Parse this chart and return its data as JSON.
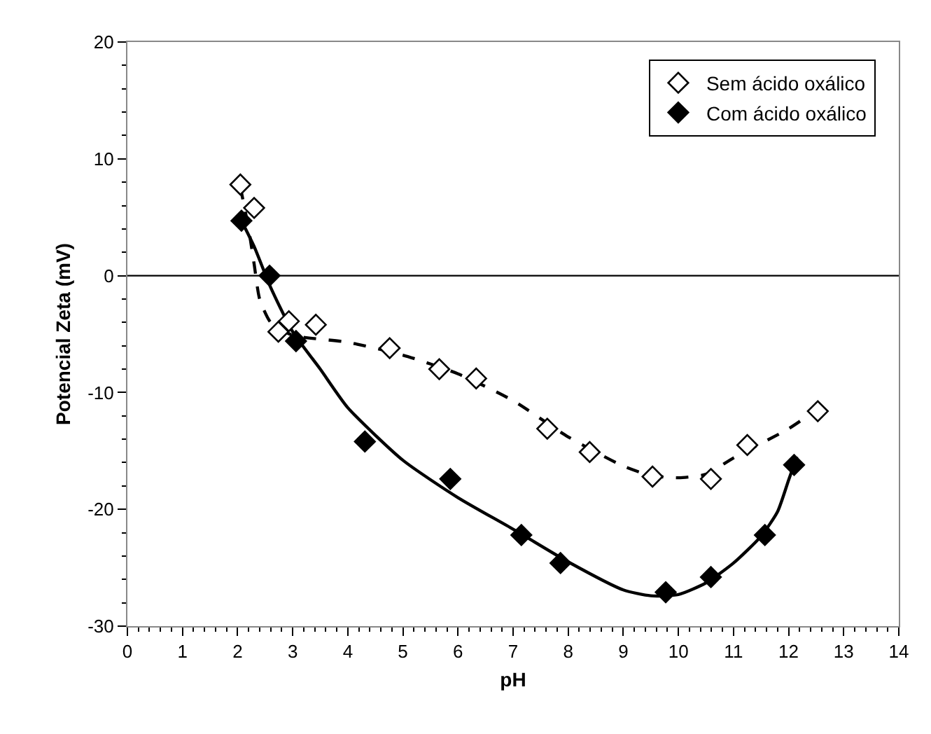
{
  "chart_data": {
    "type": "scatter",
    "xlabel": "pH",
    "ylabel": "Potencial Zeta (mV)",
    "xlim": [
      0,
      14
    ],
    "xticks": [
      0,
      1,
      2,
      3,
      4,
      5,
      6,
      7,
      8,
      9,
      10,
      11,
      12,
      13,
      14
    ],
    "ylim": [
      -30,
      20
    ],
    "yticks": [
      -30,
      -20,
      -10,
      0,
      10,
      20
    ],
    "legend": "top right",
    "marker": "diamond",
    "ref_lines": [
      {
        "axis": "y",
        "value": 0,
        "color": "#000000"
      }
    ],
    "series": [
      {
        "name": "Sem ácido oxálico",
        "color": "#ffffff",
        "x": [
          2.05,
          2.3,
          2.74,
          2.93,
          3.42,
          4.76,
          5.66,
          6.33,
          7.62,
          8.39,
          9.53,
          10.59,
          11.25,
          12.53
        ],
        "values": [
          7.8,
          5.8,
          -4.8,
          -3.9,
          -4.2,
          -6.2,
          -8.0,
          -8.8,
          -13.1,
          -15.1,
          -17.2,
          -17.4,
          -14.5,
          -11.6
        ]
      },
      {
        "name": "Com ácido oxálico",
        "color": "#000000",
        "x": [
          2.07,
          2.58,
          3.06,
          4.31,
          5.86,
          7.15,
          7.86,
          9.77,
          10.59,
          11.57,
          12.1
        ],
        "values": [
          4.7,
          0.0,
          -5.6,
          -14.2,
          -17.4,
          -22.2,
          -24.6,
          -27.1,
          -25.8,
          -22.2,
          -16.2
        ]
      },
      {
        "type": "line",
        "line_style": "dashed",
        "marker": "none",
        "color": "#000000",
        "x": [
          2.05,
          2.2,
          2.3,
          2.4,
          2.6,
          3.0,
          4.0,
          5.0,
          6.0,
          7.0,
          8.0,
          9.0,
          9.5,
          10.0,
          10.5,
          11.0,
          12.0,
          12.5
        ],
        "values": [
          7.6,
          4.0,
          1.0,
          -2.0,
          -4.0,
          -5.1,
          -5.7,
          -6.8,
          -8.4,
          -10.7,
          -13.8,
          -16.3,
          -17.1,
          -17.3,
          -17.0,
          -15.6,
          -13.1,
          -11.5
        ]
      },
      {
        "type": "line",
        "line_style": "solid",
        "marker": "none",
        "color": "#000000",
        "x": [
          2.07,
          2.3,
          2.6,
          3.0,
          3.5,
          4.0,
          5.0,
          6.0,
          7.0,
          8.0,
          9.0,
          9.5,
          10.0,
          10.5,
          11.0,
          11.5,
          11.8,
          12.0,
          12.15
        ],
        "values": [
          4.7,
          2.5,
          -1.0,
          -4.8,
          -8.0,
          -11.3,
          -15.8,
          -19.0,
          -21.7,
          -24.5,
          -26.9,
          -27.4,
          -27.3,
          -26.3,
          -24.6,
          -22.3,
          -20.2,
          -17.5,
          -15.5
        ]
      }
    ]
  }
}
